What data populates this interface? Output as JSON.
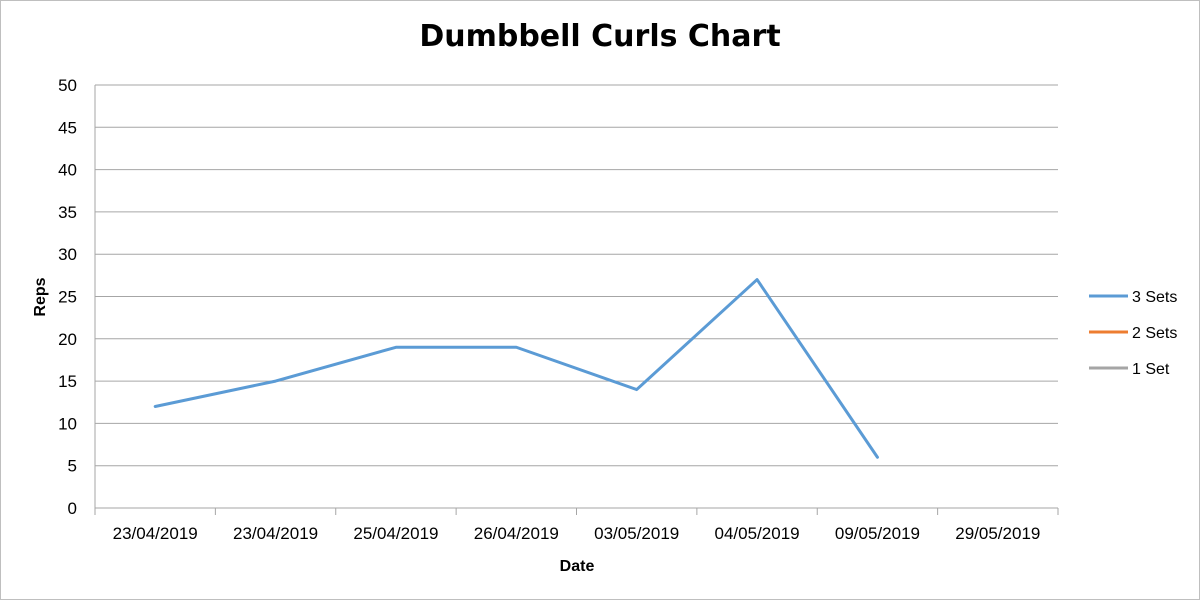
{
  "chart_data": {
    "type": "line",
    "title": "Dumbbell Curls Chart",
    "xlabel": "Date",
    "ylabel": "Reps",
    "categories": [
      "23/04/2019",
      "23/04/2019",
      "25/04/2019",
      "26/04/2019",
      "03/05/2019",
      "04/05/2019",
      "09/05/2019",
      "29/05/2019"
    ],
    "ylim": [
      0,
      50
    ],
    "yticks": [
      "0",
      "5",
      "10",
      "15",
      "20",
      "25",
      "30",
      "35",
      "40",
      "45",
      "50"
    ],
    "grid": true,
    "legend_position": "right",
    "series": [
      {
        "name": "3 Sets",
        "color": "#5b9bd5",
        "values": [
          12,
          15,
          19,
          19,
          14,
          27,
          6,
          null
        ]
      },
      {
        "name": "2 Sets",
        "color": "#ed7d31",
        "values": [
          null,
          null,
          null,
          null,
          null,
          null,
          null,
          null
        ]
      },
      {
        "name": "1 Set",
        "color": "#a5a5a5",
        "values": [
          null,
          null,
          null,
          null,
          null,
          null,
          null,
          null
        ]
      }
    ]
  }
}
